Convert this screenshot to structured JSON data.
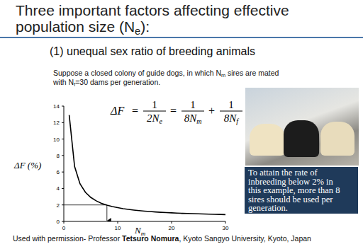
{
  "slide": {
    "title_lines": [
      [
        {
          "text": "Three  important factors affecting effective"
        }
      ],
      [
        {
          "text": "population size (N"
        },
        {
          "text": "e",
          "sub": true
        },
        {
          "text": "):"
        }
      ]
    ],
    "subtitle": "(1) unequal sex ratio of breeding animals",
    "intro_lines": [
      [
        {
          "text": "Suppose a closed colony of guide dogs, in which N"
        },
        {
          "text": "m",
          "sub": true
        },
        {
          "text": " sires are mated"
        }
      ],
      [
        {
          "text": "with N"
        },
        {
          "text": "f",
          "sub": true
        },
        {
          "text": "=30 dams per generation."
        }
      ]
    ],
    "formula": {
      "lhs": "ΔF",
      "operators": [
        "=",
        "=",
        "+"
      ],
      "fractions": [
        {
          "num": "1",
          "den": "2N",
          "den_sub": "e"
        },
        {
          "num": "1",
          "den": "8N",
          "den_sub": "m"
        },
        {
          "num": "1",
          "den": "8N",
          "den_sub": "f"
        }
      ]
    },
    "note_lines": [
      "To attain the rate of",
      "inbreeding below 2% in",
      "this example, more than 8",
      "sires should be used per",
      "generation."
    ],
    "footer": [
      {
        "text": "Used with permission- Professor "
      },
      {
        "text": "Tetsuro Nomura",
        "bold": true
      },
      {
        "text": ", Kyoto Sangyo University, Kyoto, Japan"
      }
    ]
  },
  "chart_data": {
    "type": "line",
    "x_label": {
      "text": "N",
      "sub": "m"
    },
    "y_label": "ΔF (%)",
    "x": [
      1,
      2,
      3,
      4,
      5,
      6,
      7,
      8,
      9,
      10,
      11,
      12,
      13,
      14,
      15,
      16,
      17,
      18,
      19,
      20,
      21,
      22,
      23,
      24,
      25,
      26,
      27,
      28,
      29,
      30
    ],
    "values": [
      12.92,
      6.67,
      4.58,
      3.54,
      2.92,
      2.5,
      2.2,
      1.98,
      1.81,
      1.67,
      1.55,
      1.46,
      1.38,
      1.31,
      1.25,
      1.2,
      1.15,
      1.11,
      1.07,
      1.04,
      1.01,
      0.98,
      0.96,
      0.94,
      0.92,
      0.9,
      0.88,
      0.86,
      0.85,
      0.83
    ],
    "color": "#000000",
    "xlim": [
      0,
      30
    ],
    "ylim": [
      0,
      14
    ],
    "xticks": [
      0,
      10,
      20,
      30
    ],
    "yticks": [
      0,
      2,
      4,
      6,
      8,
      10,
      12,
      14
    ],
    "grid": false,
    "reference_x": 8,
    "reference_y": 2
  }
}
